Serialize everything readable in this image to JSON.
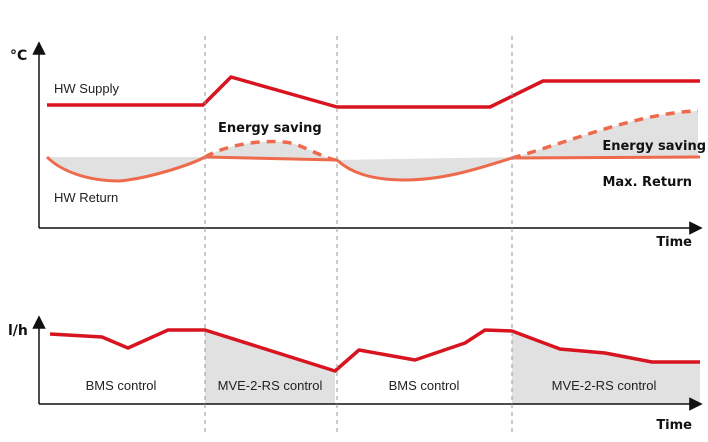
{
  "top_panel": {
    "y_axis_label": "°C",
    "x_axis_label": "Time",
    "labels": {
      "hw_supply": "HW Supply",
      "hw_return": "HW Return",
      "energy_saving_1": "Energy saving",
      "energy_saving_2": "Energy saving",
      "max_return": "Max. Return"
    }
  },
  "bottom_panel": {
    "y_axis_label": "l/h",
    "x_axis_label": "Time",
    "segments": [
      {
        "label": "BMS control"
      },
      {
        "label": "MVE-2-RS control"
      },
      {
        "label": "BMS control"
      },
      {
        "label": "MVE-2-RS control"
      }
    ]
  },
  "colors": {
    "supply": "#d7141f",
    "return": "#ee6a4c",
    "saving_fill": "#e1e1e1",
    "axis": "#111111",
    "divider": "#999999"
  }
}
